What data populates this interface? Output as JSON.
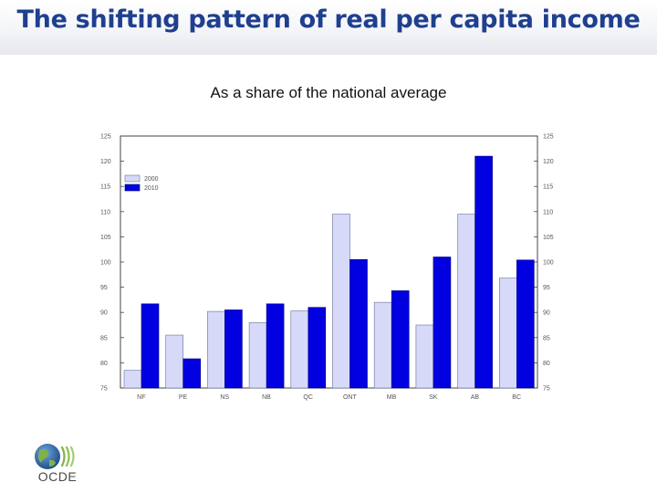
{
  "slide": {
    "title": "The shifting pattern of real per capita income",
    "subtitle": "As a share of the national average"
  },
  "colors": {
    "title": "#1f3f8f",
    "series_2000": "#d6d9f8",
    "series_2010": "#0000e0"
  },
  "chart_data": {
    "type": "bar",
    "categories": [
      "NF",
      "PE",
      "NS",
      "NB",
      "QC",
      "ONT",
      "MB",
      "SK",
      "AB",
      "BC"
    ],
    "series": [
      {
        "name": "2000",
        "values": [
          78.5,
          85.5,
          90.2,
          88.0,
          90.3,
          109.5,
          92.0,
          87.5,
          109.5,
          96.8
        ]
      },
      {
        "name": "2010",
        "values": [
          91.7,
          80.8,
          90.5,
          91.7,
          91.0,
          100.5,
          94.3,
          101.0,
          121.0,
          100.4
        ]
      }
    ],
    "ylim": [
      75,
      125
    ],
    "yticks": [
      75,
      80,
      85,
      90,
      95,
      100,
      105,
      110,
      115,
      120,
      125
    ],
    "y_axis_both_sides": true,
    "legend_position": "top-left",
    "grid": false
  },
  "logo": {
    "icon": "oecd-globe-icon",
    "text": "OCDE"
  }
}
